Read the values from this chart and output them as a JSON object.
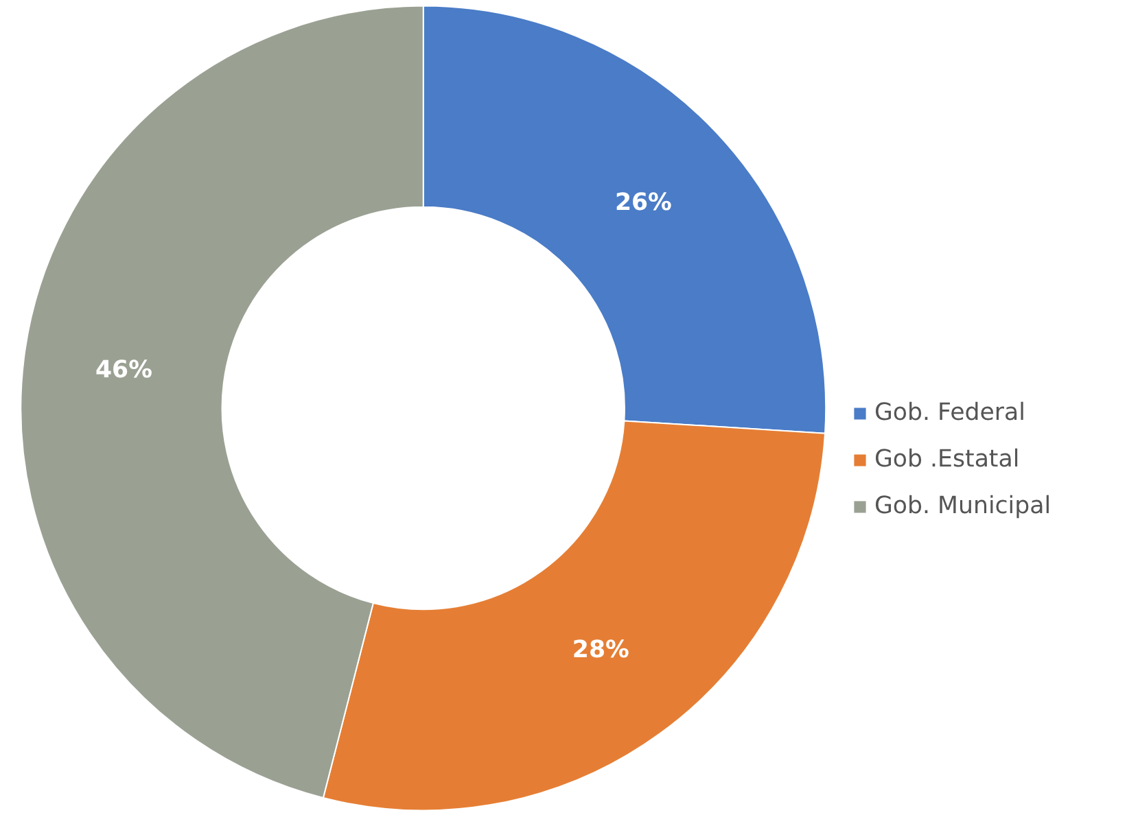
{
  "chart_data": {
    "type": "donut",
    "categories": [
      "Gob. Federal",
      "Gob .Estatal",
      "Gob. Municipal"
    ],
    "values": [
      26,
      28,
      46
    ],
    "colors": [
      "#4a7cc7",
      "#e57e34",
      "#9aa193"
    ],
    "value_labels": [
      "26%",
      "28%",
      "46%"
    ],
    "legend": "right"
  }
}
